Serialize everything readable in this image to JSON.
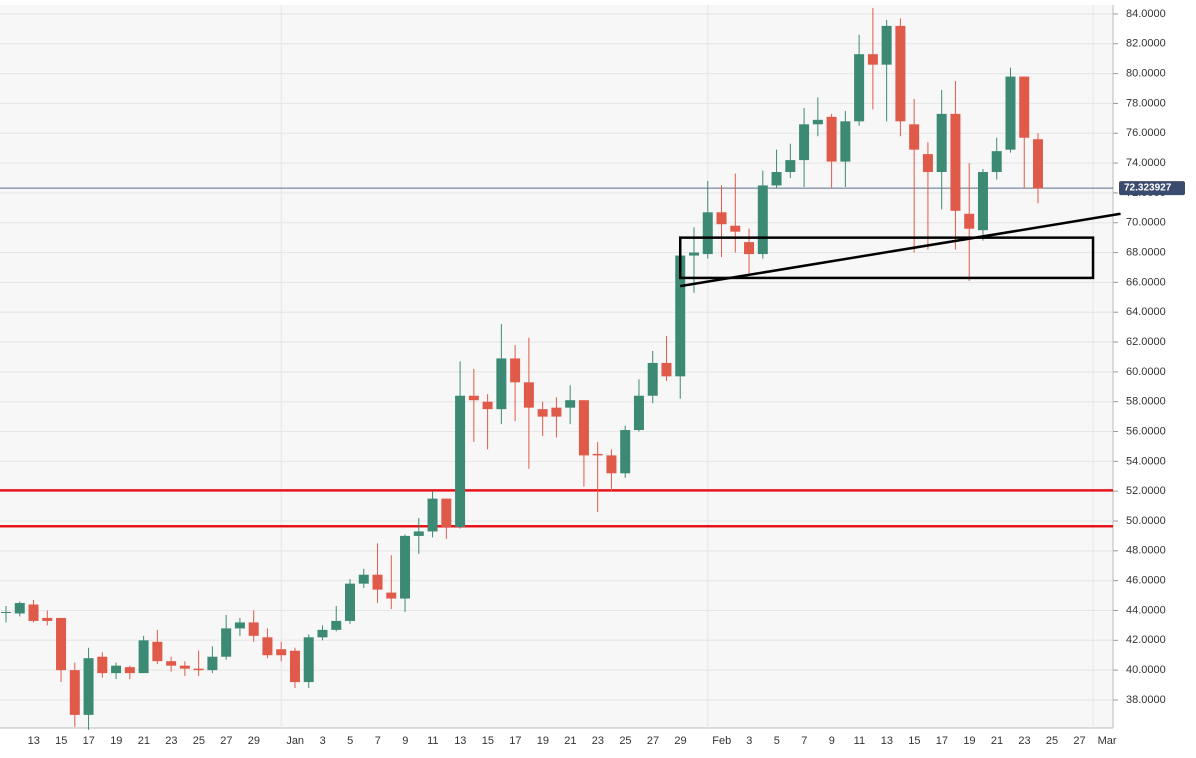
{
  "chart_data": {
    "type": "candlestick",
    "categories": [
      null,
      "13",
      null,
      "15",
      null,
      "17",
      null,
      "19",
      null,
      "21",
      null,
      "23",
      null,
      "25",
      null,
      "27",
      null,
      "29",
      null,
      null,
      "Jan",
      null,
      "3",
      null,
      "5",
      null,
      "7",
      null,
      "9",
      null,
      "11",
      null,
      "13",
      null,
      "15",
      null,
      "17",
      null,
      "19",
      null,
      "21",
      null,
      "23",
      null,
      "25",
      null,
      "27",
      null,
      "29",
      null,
      null,
      "Feb",
      null,
      "3",
      null,
      "5",
      null,
      "7",
      null,
      "9",
      null,
      "11",
      null,
      "13",
      null,
      "15",
      null,
      "17",
      null,
      "19",
      null,
      "21",
      null,
      "23",
      null,
      "25",
      null,
      "27",
      null,
      "Mar"
    ],
    "open": [
      43.9,
      43.8,
      44.4,
      43.5,
      43.5,
      40.0,
      37.0,
      40.9,
      39.8,
      40.2,
      39.8,
      41.9,
      40.6,
      40.3,
      40.1,
      40.0,
      40.9,
      42.8,
      43.2,
      42.2,
      41.4,
      41.3,
      39.2,
      42.2,
      42.7,
      43.3,
      45.8,
      46.4,
      45.2,
      44.8,
      49.0,
      49.3,
      51.5,
      49.6,
      58.4,
      58.0,
      57.5,
      60.9,
      59.3,
      57.5,
      57.6,
      57.6,
      58.1,
      54.5,
      54.4,
      53.2,
      56.1,
      58.4,
      60.6,
      59.7,
      67.8,
      67.9,
      70.7,
      69.8,
      68.7,
      67.9,
      72.5,
      73.4,
      74.2,
      76.6,
      77.1,
      74.1,
      76.8,
      81.3,
      80.6,
      83.2,
      76.6,
      74.6,
      73.4,
      77.3,
      70.6,
      69.5,
      73.4,
      74.9,
      79.8,
      75.6,
      null,
      null,
      null,
      null
    ],
    "high": [
      44.3,
      44.6,
      44.7,
      44.0,
      43.5,
      40.5,
      41.5,
      41.2,
      40.5,
      40.3,
      42.3,
      42.7,
      40.9,
      40.6,
      41.3,
      41.6,
      43.7,
      43.5,
      44.0,
      42.8,
      41.9,
      41.5,
      42.4,
      43.0,
      44.3,
      46.1,
      46.8,
      48.5,
      47.7,
      49.1,
      50.2,
      52.0,
      51.5,
      60.7,
      60.2,
      58.5,
      63.2,
      61.8,
      62.3,
      58.0,
      58.3,
      59.1,
      58.1,
      55.3,
      54.8,
      56.4,
      59.5,
      61.4,
      62.4,
      68.7,
      69.7,
      72.8,
      72.5,
      73.3,
      69.6,
      73.5,
      74.9,
      75.3,
      77.7,
      78.4,
      77.3,
      77.5,
      82.6,
      84.4,
      83.6,
      83.7,
      78.3,
      75.4,
      78.9,
      79.5,
      74.0,
      73.6,
      75.7,
      80.4,
      79.8,
      76.0,
      null,
      null,
      null,
      null
    ],
    "low": [
      43.2,
      43.6,
      43.2,
      43.0,
      39.2,
      36.2,
      36.0,
      39.5,
      39.4,
      39.4,
      39.8,
      40.4,
      39.9,
      39.6,
      39.6,
      39.8,
      40.7,
      42.3,
      41.9,
      40.8,
      40.6,
      38.8,
      38.8,
      42.0,
      42.6,
      43.1,
      45.5,
      44.5,
      44.1,
      43.9,
      47.8,
      48.9,
      48.8,
      49.5,
      55.3,
      54.8,
      56.5,
      56.7,
      53.5,
      55.7,
      55.6,
      56.5,
      52.3,
      50.6,
      52.0,
      52.9,
      56.0,
      57.9,
      59.4,
      58.2,
      65.3,
      67.6,
      67.7,
      68.0,
      66.6,
      67.6,
      72.3,
      73.0,
      72.4,
      75.8,
      72.3,
      72.4,
      76.5,
      77.6,
      76.8,
      75.8,
      68.0,
      68.2,
      70.9,
      68.2,
      66.1,
      68.8,
      72.9,
      74.7,
      72.3,
      71.3,
      null,
      null,
      null,
      null
    ],
    "close": [
      43.9,
      44.5,
      43.3,
      43.3,
      40.0,
      37.0,
      40.8,
      39.8,
      40.3,
      39.8,
      42.0,
      40.6,
      40.3,
      40.1,
      40.0,
      40.9,
      42.8,
      43.2,
      42.3,
      41.0,
      41.0,
      39.2,
      42.2,
      42.7,
      43.3,
      45.8,
      46.4,
      45.4,
      44.8,
      49.0,
      49.3,
      51.5,
      49.6,
      58.4,
      58.1,
      57.5,
      60.9,
      59.3,
      57.6,
      57.0,
      57.0,
      58.1,
      54.4,
      54.4,
      53.2,
      56.1,
      58.4,
      60.6,
      59.7,
      67.8,
      68.0,
      70.7,
      69.9,
      69.4,
      67.9,
      72.5,
      73.4,
      74.2,
      76.6,
      76.9,
      74.1,
      76.8,
      81.3,
      80.6,
      83.2,
      76.8,
      74.9,
      73.4,
      77.3,
      70.8,
      69.6,
      73.4,
      74.8,
      79.8,
      75.7,
      72.3,
      null,
      null,
      null,
      null
    ],
    "up_color": "#3c8a74",
    "down_color": "#e05a4a",
    "ylim": [
      36.12,
      84.6
    ],
    "yticks": [
      {
        "value": 38,
        "label": "38.0000"
      },
      {
        "value": 40,
        "label": "40.0000"
      },
      {
        "value": 42,
        "label": "42.0000"
      },
      {
        "value": 44,
        "label": "44.0000"
      },
      {
        "value": 46,
        "label": "46.0000"
      },
      {
        "value": 48,
        "label": "48.0000"
      },
      {
        "value": 50,
        "label": "50.0000"
      },
      {
        "value": 52,
        "label": "52.0000"
      },
      {
        "value": 54,
        "label": "54.0000"
      },
      {
        "value": 56,
        "label": "56.0000"
      },
      {
        "value": 58,
        "label": "58.0000"
      },
      {
        "value": 60,
        "label": "60.0000"
      },
      {
        "value": 62,
        "label": "62.0000"
      },
      {
        "value": 64,
        "label": "64.0000"
      },
      {
        "value": 66,
        "label": "66.0000"
      },
      {
        "value": 68,
        "label": "68.0000"
      },
      {
        "value": 70,
        "label": "70.0000"
      },
      {
        "value": 72,
        "label": "72.0000"
      },
      {
        "value": 74,
        "label": "74.0000"
      },
      {
        "value": 76,
        "label": "76.0000"
      },
      {
        "value": 78,
        "label": "78.0000"
      },
      {
        "value": 80,
        "label": "80.0000"
      },
      {
        "value": 82,
        "label": "82.0000"
      },
      {
        "value": 84,
        "label": "84.0000"
      }
    ],
    "grid": true,
    "last_price": 72.323927,
    "last_price_color": "#3b4b6e",
    "horizontal_lines": [
      52.05,
      49.65
    ],
    "horizontal_line_color": "#e8141b",
    "trendline": {
      "from": [
        49,
        65.75
      ],
      "to": [
        81,
        70.6
      ],
      "color": "#000000"
    },
    "zone": {
      "from": 49,
      "to": 79,
      "top": 69.0,
      "bottom": 66.3,
      "color": "#000000"
    }
  }
}
